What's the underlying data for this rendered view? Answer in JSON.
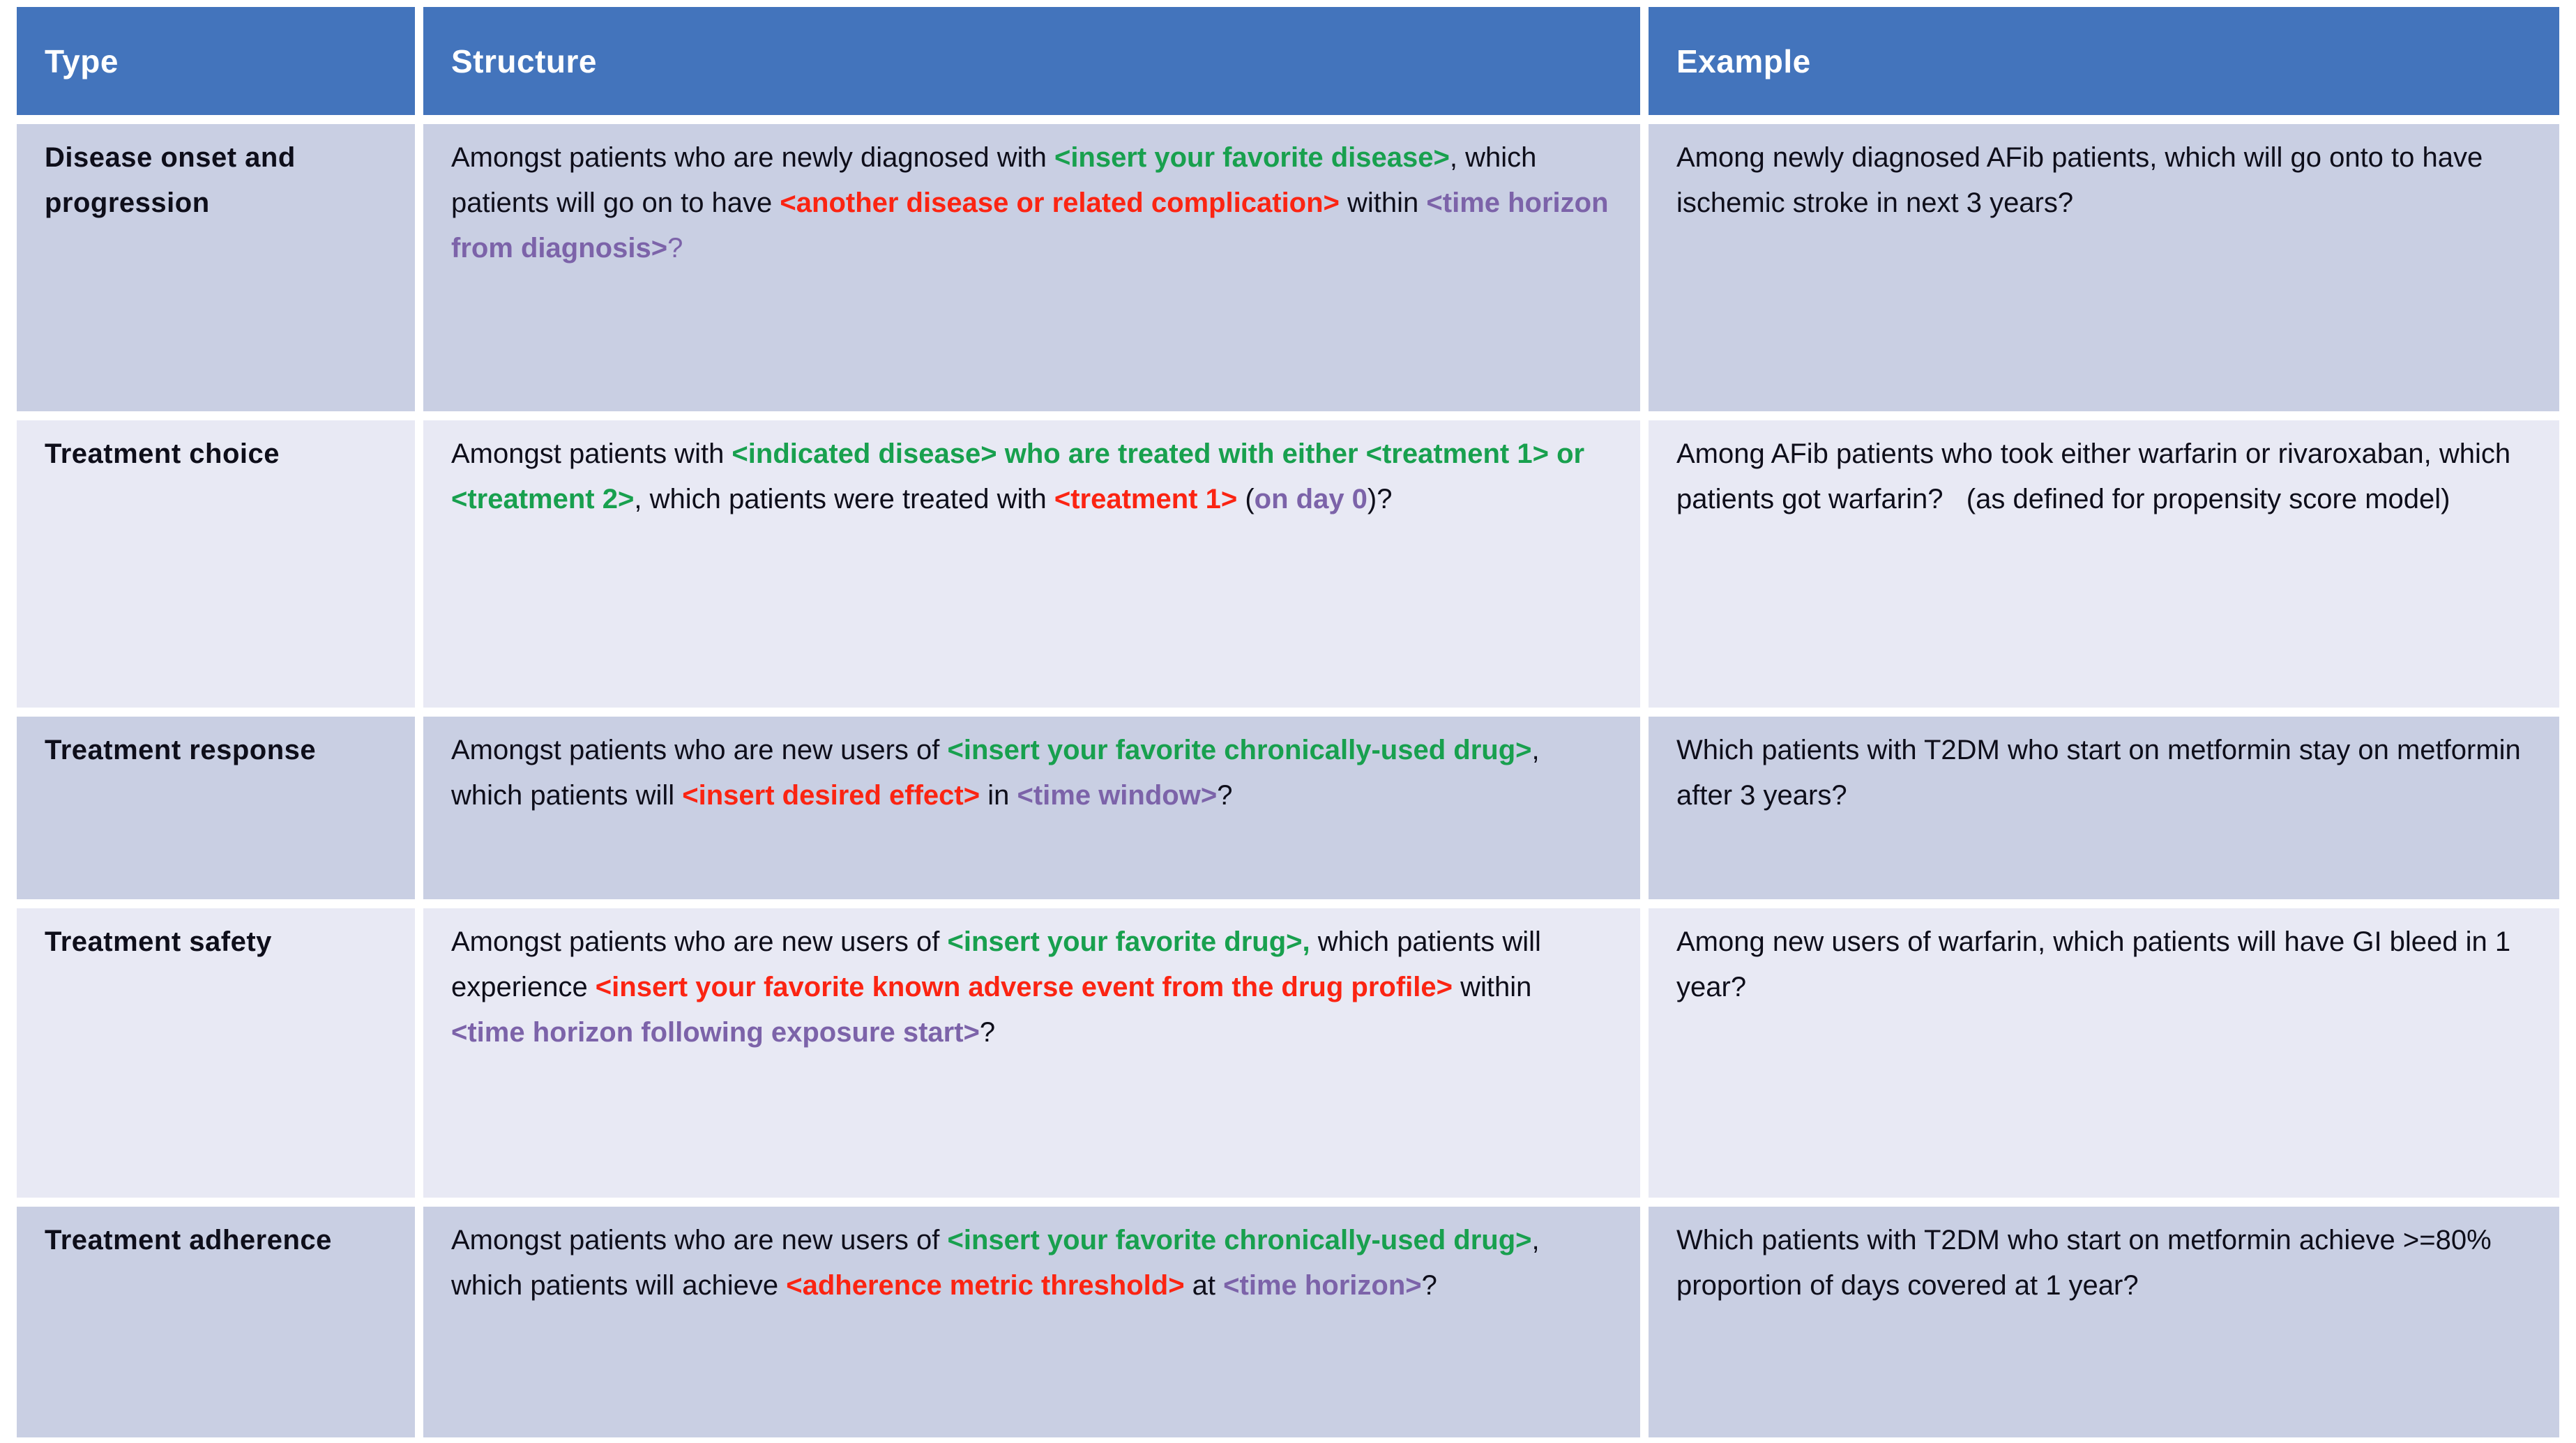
{
  "colors": {
    "header_bg": "#4374BC",
    "header_text": "#FFFFFF",
    "row_bg_dark": "#C9CFE3",
    "row_bg_light": "#E8E9F4",
    "body_text": "#0E0E1A",
    "placeholder_green": "#18A04E",
    "placeholder_red": "#FB2412",
    "placeholder_purple": "#7C63A9"
  },
  "table": {
    "headers": [
      {
        "label": "Type"
      },
      {
        "label": "Structure"
      },
      {
        "label": "Example"
      }
    ],
    "rows": [
      {
        "type": "Disease onset and progression",
        "structure_segments": [
          {
            "text": "Amongst patients who are newly diagnosed with ",
            "color": "black",
            "bold": false
          },
          {
            "text": "<insert your favorite disease>",
            "color": "green",
            "bold": true
          },
          {
            "text": ", which patients will go on to have ",
            "color": "black",
            "bold": false
          },
          {
            "text": "<another disease or related complication>",
            "color": "red",
            "bold": true
          },
          {
            "text": " within ",
            "color": "black",
            "bold": false
          },
          {
            "text": "<time horizon from diagnosis>",
            "color": "purple",
            "bold": true
          },
          {
            "text": "?",
            "color": "purple",
            "bold": false
          }
        ],
        "example": "Among newly diagnosed AFib patients, which will go onto to have ischemic stroke in next 3 years?"
      },
      {
        "type": "Treatment choice",
        "structure_segments": [
          {
            "text": "Amongst patients with ",
            "color": "black",
            "bold": false
          },
          {
            "text": "<indicated disease> who are treated with either <treatment 1> or <treatment 2>",
            "color": "green",
            "bold": true
          },
          {
            "text": ", which patients were treated with ",
            "color": "black",
            "bold": false
          },
          {
            "text": "<treatment 1>",
            "color": "red",
            "bold": true
          },
          {
            "text": " (",
            "color": "black",
            "bold": false
          },
          {
            "text": "on day 0",
            "color": "purple",
            "bold": true
          },
          {
            "text": ")?",
            "color": "black",
            "bold": false
          }
        ],
        "example": "Among AFib patients who took either warfarin or rivaroxaban, which patients got warfarin?   (as defined for propensity score model)"
      },
      {
        "type": "Treatment response",
        "structure_segments": [
          {
            "text": "Amongst patients who are new users of ",
            "color": "black",
            "bold": false
          },
          {
            "text": "<insert your favorite chronically-used drug>",
            "color": "green",
            "bold": true
          },
          {
            "text": ", which patients will ",
            "color": "black",
            "bold": false
          },
          {
            "text": "<insert desired effect>",
            "color": "red",
            "bold": true
          },
          {
            "text": " in ",
            "color": "black",
            "bold": false
          },
          {
            "text": "<time window>",
            "color": "purple",
            "bold": true
          },
          {
            "text": "?",
            "color": "black",
            "bold": false
          }
        ],
        "example": "Which patients with T2DM who start on metformin stay on metformin after 3 years?"
      },
      {
        "type": "Treatment safety",
        "structure_segments": [
          {
            "text": "Amongst patients who are new users of ",
            "color": "black",
            "bold": false
          },
          {
            "text": "<insert your favorite drug>,",
            "color": "green",
            "bold": true
          },
          {
            "text": " which patients will experience ",
            "color": "black",
            "bold": false
          },
          {
            "text": "<insert your favorite known adverse event from the drug profile>",
            "color": "red",
            "bold": true
          },
          {
            "text": " within ",
            "color": "black",
            "bold": false
          },
          {
            "text": "<time horizon following exposure start>",
            "color": "purple",
            "bold": true
          },
          {
            "text": "?",
            "color": "black",
            "bold": false
          }
        ],
        "example": "Among new users of warfarin, which patients will have GI bleed in 1 year?"
      },
      {
        "type": "Treatment adherence",
        "structure_segments": [
          {
            "text": "Amongst patients who are new users of ",
            "color": "black",
            "bold": false
          },
          {
            "text": "<insert your favorite chronically-used drug>",
            "color": "green",
            "bold": true
          },
          {
            "text": ", which patients will achieve ",
            "color": "black",
            "bold": false
          },
          {
            "text": "<adherence metric threshold>",
            "color": "red",
            "bold": true
          },
          {
            "text": " at ",
            "color": "black",
            "bold": false
          },
          {
            "text": "<time horizon>",
            "color": "purple",
            "bold": true
          },
          {
            "text": "?",
            "color": "black",
            "bold": false
          }
        ],
        "example": "Which patients with T2DM who start on metformin achieve >=80% proportion of days covered at 1 year?"
      }
    ]
  }
}
